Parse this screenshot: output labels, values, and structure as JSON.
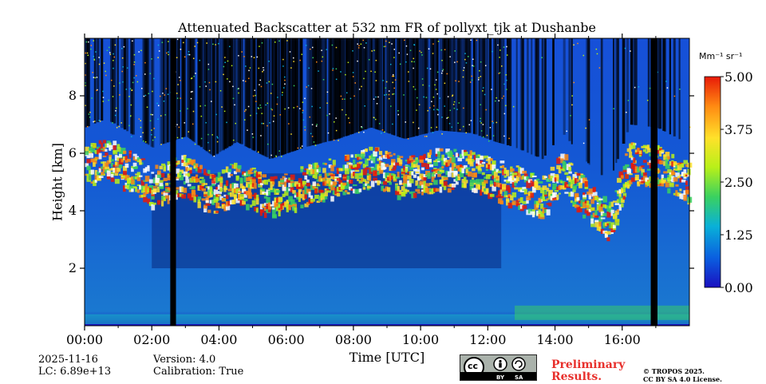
{
  "chart_data": {
    "type": "heatmap",
    "title": "Attenuated Backscatter at 532 nm FR of pollyxt_tjk at Dushanbe",
    "xlabel": "Time [UTC]",
    "ylabel": "Height [km]",
    "xlim_hours": [
      0,
      18
    ],
    "ylim_km": [
      0,
      10
    ],
    "x_ticks": [
      {
        "value": 0,
        "label": "00:00"
      },
      {
        "value": 2,
        "label": "02:00"
      },
      {
        "value": 4,
        "label": "04:00"
      },
      {
        "value": 6,
        "label": "06:00"
      },
      {
        "value": 8,
        "label": "08:00"
      },
      {
        "value": 10,
        "label": "10:00"
      },
      {
        "value": 12,
        "label": "12:00"
      },
      {
        "value": 14,
        "label": "14:00"
      },
      {
        "value": 16,
        "label": "16:00"
      }
    ],
    "y_ticks": [
      {
        "value": 2,
        "label": "2"
      },
      {
        "value": 4,
        "label": "4"
      },
      {
        "value": 6,
        "label": "6"
      },
      {
        "value": 8,
        "label": "8"
      }
    ],
    "colorbar": {
      "unit_label": "Mm⁻¹ sr⁻¹",
      "range": [
        0,
        5
      ],
      "ticks": [
        {
          "value": 0,
          "label": "0.00"
        },
        {
          "value": 1.25,
          "label": "1.25"
        },
        {
          "value": 2.5,
          "label": "2.50"
        },
        {
          "value": 3.75,
          "label": "3.75"
        },
        {
          "value": 5,
          "label": "5.00"
        }
      ],
      "colors": [
        "#1a10c0",
        "#0a5fe0",
        "#09b0d8",
        "#3ad160",
        "#b8f019",
        "#ffe12a",
        "#ff8a12",
        "#e81a08"
      ]
    },
    "features": {
      "cloud_layer_top_profile": [
        [
          0,
          6.3
        ],
        [
          0.6,
          6.6
        ],
        [
          1.2,
          6.2
        ],
        [
          2.0,
          5.6
        ],
        [
          3.0,
          6.0
        ],
        [
          3.8,
          5.3
        ],
        [
          4.5,
          5.8
        ],
        [
          5.5,
          5.2
        ],
        [
          6.5,
          5.6
        ],
        [
          7.5,
          5.9
        ],
        [
          8.5,
          6.3
        ],
        [
          9.5,
          5.9
        ],
        [
          10.5,
          6.2
        ],
        [
          11.5,
          6.1
        ],
        [
          12.2,
          5.8
        ],
        [
          12.8,
          5.6
        ],
        [
          13.6,
          5.2
        ],
        [
          14.2,
          6.1
        ],
        [
          15.0,
          5.0
        ],
        [
          15.6,
          4.4
        ],
        [
          16.2,
          6.4
        ],
        [
          17.0,
          6.3
        ],
        [
          18.0,
          5.7
        ]
      ],
      "missing_data_hours": [
        [
          2.55,
          2.72
        ],
        [
          16.85,
          17.05
        ]
      ],
      "low_signal_region_hours": [
        [
          2.0,
          12.4
        ]
      ]
    }
  },
  "footer": {
    "date": "2025-11-16",
    "lc": "LC: 6.89e+13",
    "version": "Version: 4.0",
    "calibration": "Calibration: True",
    "preliminary_line1": "Preliminary",
    "preliminary_line2": "Results.",
    "copyright_line1": "© TROPOS 2025.",
    "copyright_line2": "CC BY SA 4.0 License.",
    "license_badge": {
      "by": "BY",
      "sa": "SA",
      "cc": "cc"
    }
  }
}
